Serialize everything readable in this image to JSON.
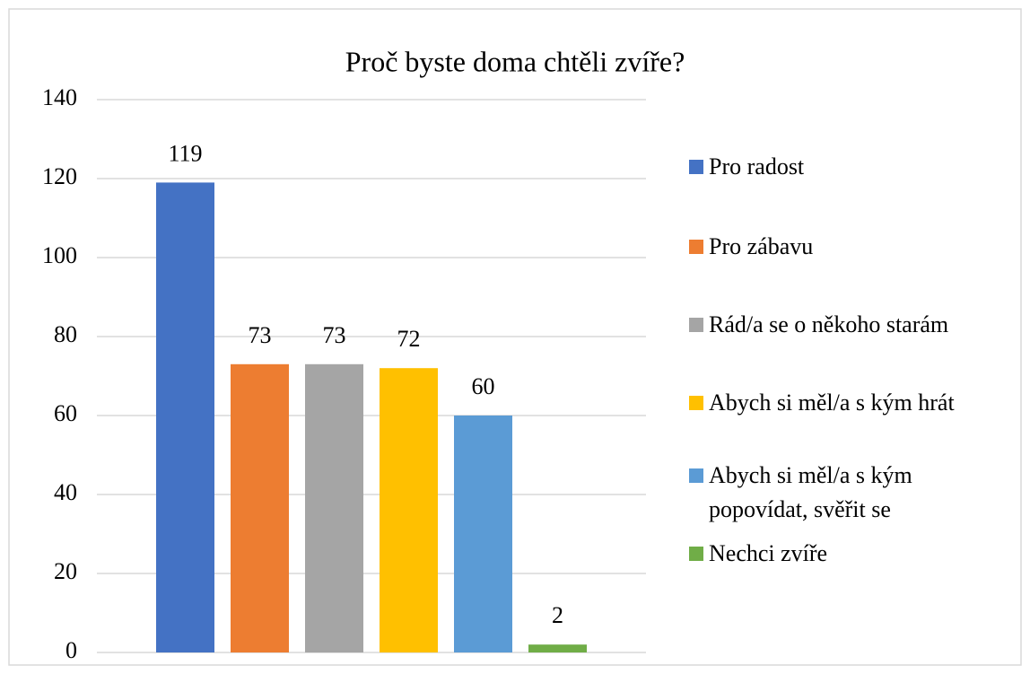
{
  "chart_data": {
    "type": "bar",
    "title": "Proč byste doma chtěli zvíře?",
    "series": [
      {
        "name": "Pro radost",
        "color": "#4472c4",
        "values": [
          119
        ]
      },
      {
        "name": "Pro zábavu",
        "color": "#ed7d31",
        "values": [
          73
        ]
      },
      {
        "name": "Rád/a se o někoho starám",
        "color": "#a5a5a5",
        "values": [
          73
        ]
      },
      {
        "name": "Abych si měl/a s kým hrát",
        "color": "#ffc000",
        "values": [
          72
        ]
      },
      {
        "name": "Abych si měl/a s kým popovídat, svěřit se",
        "color": "#5b9bd5",
        "values": [
          60
        ]
      },
      {
        "name": "Nechci zvíře",
        "color": "#70ad47",
        "values": [
          2
        ]
      }
    ],
    "ylim": [
      0,
      140
    ],
    "yticks": [
      0,
      20,
      40,
      60,
      80,
      100,
      120,
      140
    ],
    "grid": true,
    "legend": "right"
  }
}
